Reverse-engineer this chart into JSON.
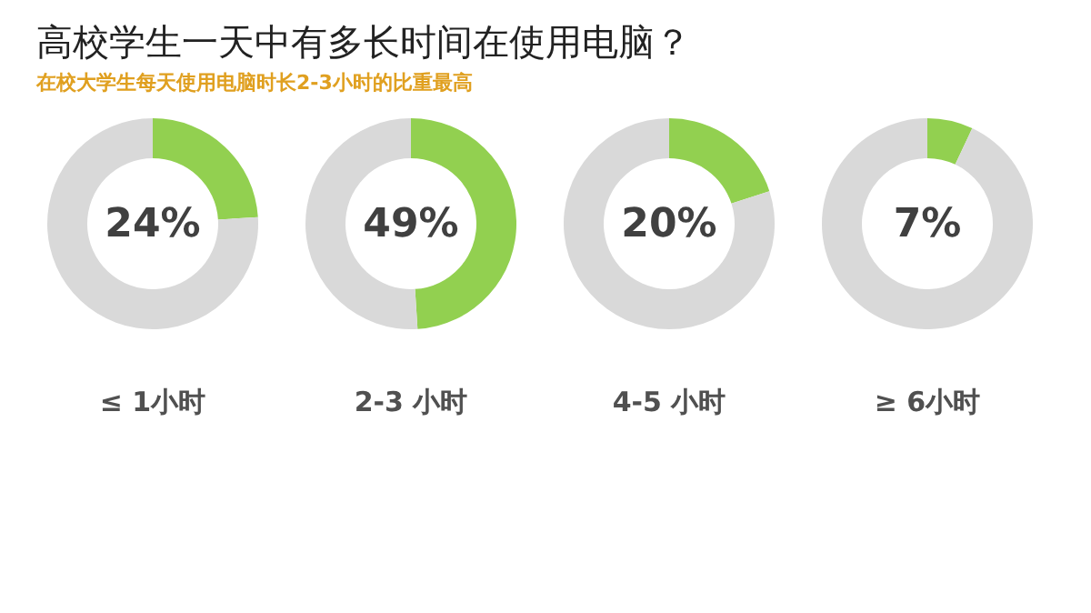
{
  "chart_data": [
    {
      "type": "donut",
      "title": "高校学生一天中有多长时间在使用电脑？",
      "subtitle": "在校大学生每天使用电脑时长2-3小时的比重最高",
      "xlabel": "≤ 1小时",
      "categories": [
        null,
        null
      ],
      "values": [
        24,
        76
      ],
      "colors": [
        "#92d050",
        "#d9d9d9"
      ],
      "annotations": [
        "24%"
      ]
    },
    {
      "type": "donut",
      "xlabel": "2-3 小时",
      "categories": [
        null,
        null
      ],
      "values": [
        49,
        51
      ],
      "colors": [
        "#92d050",
        "#d9d9d9"
      ],
      "annotations": [
        "49%"
      ]
    },
    {
      "type": "donut",
      "xlabel": "4-5 小时",
      "categories": [
        null,
        null
      ],
      "values": [
        20,
        80
      ],
      "colors": [
        "#92d050",
        "#d9d9d9"
      ],
      "annotations": [
        "20%"
      ]
    },
    {
      "type": "donut",
      "xlabel": "≥ 6小时",
      "categories": [
        null,
        null
      ],
      "values": [
        7,
        93
      ],
      "colors": [
        "#92d050",
        "#d9d9d9"
      ],
      "annotations": [
        "7%"
      ]
    }
  ]
}
